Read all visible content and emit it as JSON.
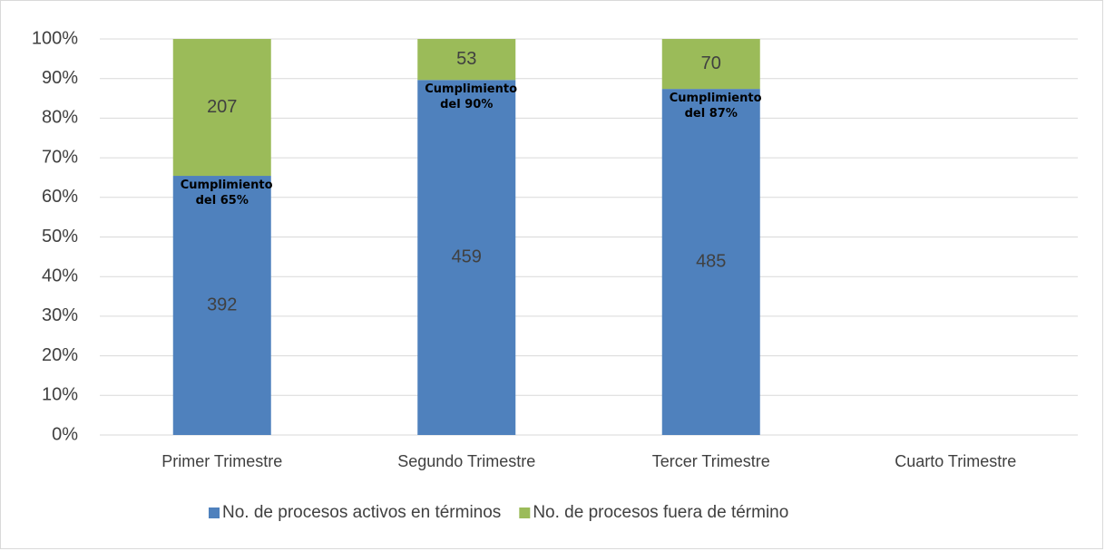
{
  "chart_data": {
    "type": "bar",
    "stacked": "percent",
    "categories": [
      "Primer Trimestre",
      "Segundo Trimestre",
      "Tercer Trimestre",
      "Cuarto Trimestre"
    ],
    "series": [
      {
        "name": "No. de procesos activos en términos",
        "color": "#4f81bd",
        "values": [
          392,
          459,
          485,
          null
        ]
      },
      {
        "name": "No. de procesos fuera de término",
        "color": "#9bbb59",
        "values": [
          207,
          53,
          70,
          null
        ]
      }
    ],
    "annotations": [
      "Cumplimiento del 65%",
      "Cumplimiento del 90%",
      "Cumplimiento del 87%"
    ],
    "ylim": [
      0,
      100
    ],
    "yticks": [
      {
        "value": 0,
        "label": "0%"
      },
      {
        "value": 10,
        "label": "10%"
      },
      {
        "value": 20,
        "label": "20%"
      },
      {
        "value": 30,
        "label": "30%"
      },
      {
        "value": 40,
        "label": "40%"
      },
      {
        "value": 50,
        "label": "50%"
      },
      {
        "value": 60,
        "label": "60%"
      },
      {
        "value": 70,
        "label": "70%"
      },
      {
        "value": 80,
        "label": "80%"
      },
      {
        "value": 90,
        "label": "90%"
      },
      {
        "value": 100,
        "label": "100%"
      }
    ],
    "grid": true,
    "legend": "bottom"
  }
}
